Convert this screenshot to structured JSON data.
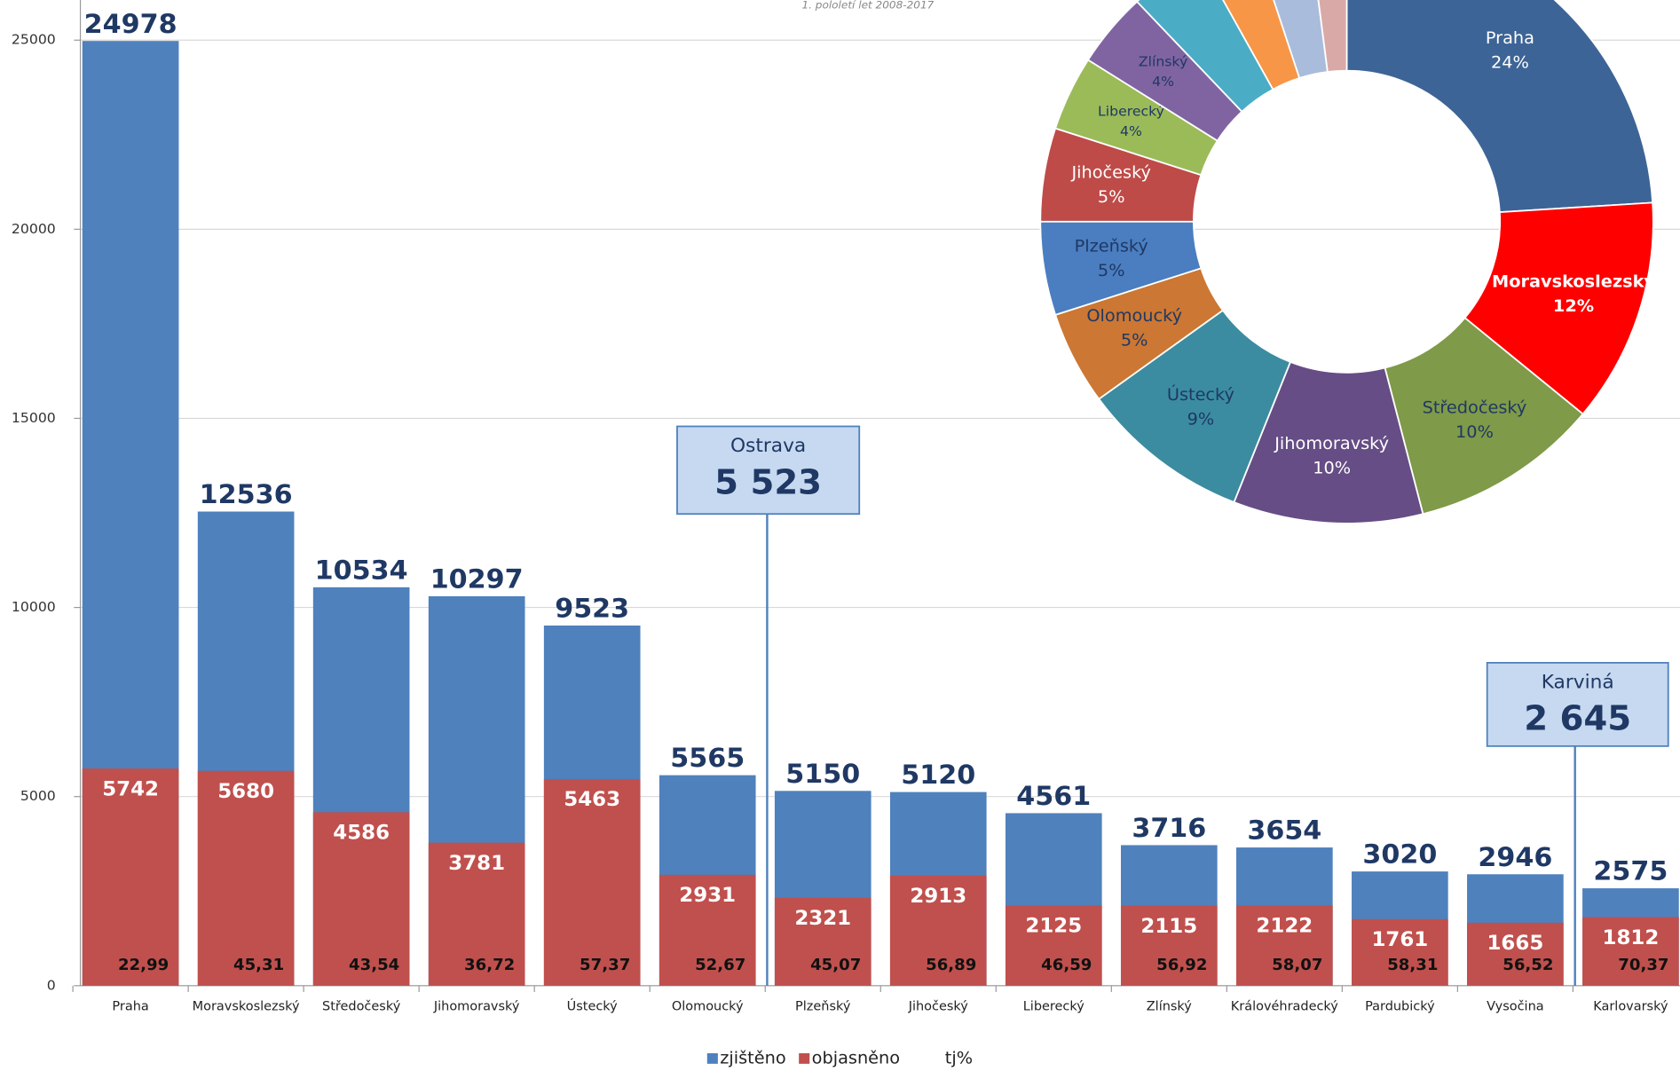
{
  "chart_data": [
    {
      "type": "bar",
      "subtitle": "1. pololetí let 2008-2017",
      "categories": [
        "Praha",
        "Moravskoslezský",
        "Středočeský",
        "Jihomoravský",
        "Ústecký",
        "Olomoucký",
        "Plzeňský",
        "Jihočeský",
        "Liberecký",
        "Zlínský",
        "Královéhradecký",
        "Pardubický",
        "Vysočina",
        "Karlovarský"
      ],
      "series": [
        {
          "name": "zjištěno",
          "color": "#4f81bd",
          "values": [
            24978,
            12536,
            10534,
            10297,
            9523,
            5565,
            5150,
            5120,
            4561,
            3716,
            3654,
            3020,
            2946,
            2575
          ]
        },
        {
          "name": "objasněno",
          "color": "#c0504d",
          "values": [
            5742,
            5680,
            4586,
            3781,
            5463,
            2931,
            2321,
            2913,
            2125,
            2115,
            2122,
            1761,
            1665,
            1812
          ]
        },
        {
          "name": "tj%",
          "values": [
            22.99,
            45.31,
            43.54,
            36.72,
            57.37,
            52.67,
            45.07,
            56.89,
            46.59,
            56.92,
            58.07,
            58.31,
            56.52,
            70.37
          ],
          "value_labels": [
            "22,99",
            "45,31",
            "43,54",
            "36,72",
            "57,37",
            "52,67",
            "45,07",
            "56,89",
            "46,59",
            "56,92",
            "58,07",
            "58,31",
            "56,52",
            "70,37"
          ]
        }
      ],
      "ylim": [
        0,
        26000
      ],
      "yticks": [
        0,
        5000,
        10000,
        15000,
        20000,
        25000
      ],
      "grid": true,
      "legend": "bottom",
      "annotations": [
        {
          "title": "Ostrava",
          "text": "5 523"
        },
        {
          "title": "Karviná",
          "text": "2 645"
        }
      ]
    },
    {
      "type": "donut",
      "categories": [
        "Praha",
        "Moravskoslezský",
        "Středočeský",
        "Jihomoravský",
        "Ústecký",
        "Olomoucký",
        "Plzeňský",
        "Jihočeský",
        "Liberecký",
        "Zlínský",
        null,
        null,
        null,
        null
      ],
      "values": [
        24,
        12,
        10,
        10,
        9,
        5,
        5,
        5,
        4,
        4,
        4,
        3,
        3,
        2
      ],
      "value_labels": [
        "24%",
        "12%",
        "10%",
        "10%",
        "9%",
        "5%",
        "5%",
        "5%",
        "4%",
        "4%",
        null,
        null,
        null,
        null
      ],
      "colors": [
        "#3d6496",
        "#ff0000",
        "#7f9a48",
        "#664d85",
        "#3b8ca0",
        "#cc7733",
        "#4a7ec0",
        "#be4b48",
        "#9bbb59",
        "#8064a2",
        "#4bacc6",
        "#f79646",
        "#a9bcdb",
        "#d9a9a8"
      ],
      "label_colors": [
        "#ffffff",
        "#ffffff",
        "#1f3864",
        "#ffffff",
        "#1f3864",
        "#1f3864",
        "#1f3864",
        "#ffffff",
        "#1f3864",
        "#1f3864",
        "#ffffff",
        "#ffffff",
        "#ffffff",
        "#ffffff"
      ]
    }
  ]
}
